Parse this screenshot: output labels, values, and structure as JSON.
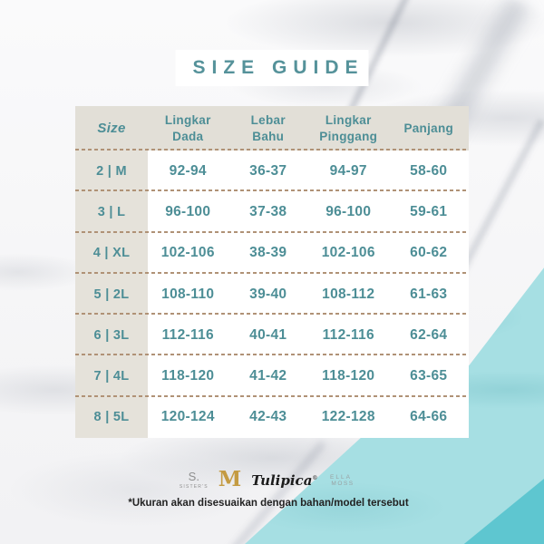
{
  "title": "SIZE GUIDE",
  "table": {
    "headers": [
      "Size",
      "Lingkar\nDada",
      "Lebar\nBahu",
      "Lingkar\nPinggang",
      "Panjang"
    ],
    "rows": [
      [
        "2 | M",
        "92-94",
        "36-37",
        "94-97",
        "58-60"
      ],
      [
        "3 | L",
        "96-100",
        "37-38",
        "96-100",
        "59-61"
      ],
      [
        "4 | XL",
        "102-106",
        "38-39",
        "102-106",
        "60-62"
      ],
      [
        "5 | 2L",
        "108-110",
        "39-40",
        "108-112",
        "61-63"
      ],
      [
        "6 | 3L",
        "112-116",
        "40-41",
        "112-116",
        "62-64"
      ],
      [
        "7 | 4L",
        "118-120",
        "41-42",
        "118-120",
        "63-65"
      ],
      [
        "8 | 5L",
        "120-124",
        "42-43",
        "122-128",
        "64-66"
      ]
    ]
  },
  "brands": {
    "sisters_top": "S.",
    "sisters_name": "SISTER'S",
    "monogram": "M",
    "tulipica": "Tulipica",
    "registered": "®",
    "ella_line1": "ELLA",
    "ella_line2": "MOSS"
  },
  "footnote": "*Ukuran akan disesuaikan dengan bahan/model tersebut",
  "colors": {
    "accent_teal_text": "#4d8e96",
    "title_teal": "#55929a",
    "header_beige": "#e2dfd7",
    "size_column_beige": "#e5e2da",
    "dash_brown": "#b09276",
    "teal_light": "#a6dfe3",
    "teal_dark": "#5ec6d0",
    "gold": "#c49b42"
  }
}
